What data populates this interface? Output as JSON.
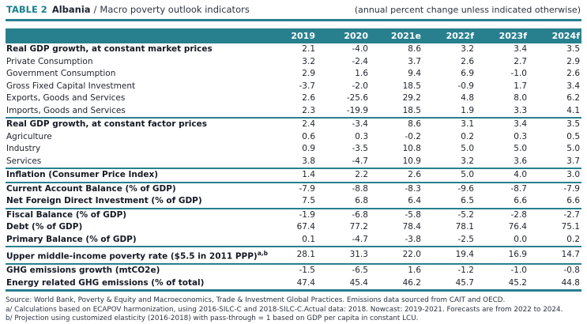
{
  "header": {
    "table_label": "TABLE 2",
    "country": "Albania",
    "separator": "/",
    "subtitle": "Macro poverty outlook indicators",
    "unit_note": "(annual percent change unless indicated otherwise)"
  },
  "colors": {
    "teal": "#28808F",
    "teal_text": "#1A7F8E"
  },
  "table": {
    "columns": [
      "2019",
      "2020",
      "2021e",
      "2022f",
      "2023f",
      "2024f"
    ],
    "rows": [
      {
        "label": "Real GDP growth, at constant market prices",
        "style": "group",
        "values": [
          "2.1",
          "-4.0",
          "8.6",
          "3.2",
          "3.4",
          "3.5"
        ],
        "divider_after": false
      },
      {
        "label": "Private Consumption",
        "style": "sub",
        "values": [
          "3.2",
          "-2.4",
          "3.7",
          "2.6",
          "2.7",
          "2.9"
        ],
        "divider_after": false
      },
      {
        "label": "Government Consumption",
        "style": "sub",
        "values": [
          "2.9",
          "1.6",
          "9.4",
          "6.9",
          "-1.0",
          "2.6"
        ],
        "divider_after": false
      },
      {
        "label": "Gross Fixed Capital Investment",
        "style": "sub",
        "values": [
          "-3.7",
          "-2.0",
          "18.5",
          "-0.9",
          "1.7",
          "3.4"
        ],
        "divider_after": false
      },
      {
        "label": "Exports, Goods and Services",
        "style": "sub",
        "values": [
          "2.6",
          "-25.6",
          "29.2",
          "4.8",
          "8.0",
          "6.2"
        ],
        "divider_after": false
      },
      {
        "label": "Imports, Goods and Services",
        "style": "sub",
        "values": [
          "2.3",
          "-19.9",
          "18.5",
          "1.9",
          "3.3",
          "4.1"
        ],
        "divider_after": true
      },
      {
        "label": "Real GDP growth, at constant factor prices",
        "style": "group",
        "values": [
          "2.4",
          "-3.4",
          "8.6",
          "3.1",
          "3.4",
          "3.5"
        ],
        "divider_after": false
      },
      {
        "label": "Agriculture",
        "style": "sub",
        "values": [
          "0.6",
          "0.3",
          "-0.2",
          "0.2",
          "0.3",
          "0.5"
        ],
        "divider_after": false
      },
      {
        "label": "Industry",
        "style": "sub",
        "values": [
          "0.9",
          "-3.5",
          "10.8",
          "5.0",
          "5.0",
          "5.0"
        ],
        "divider_after": false
      },
      {
        "label": "Services",
        "style": "sub",
        "values": [
          "3.8",
          "-4.7",
          "10.9",
          "3.2",
          "3.6",
          "3.7"
        ],
        "divider_after": true
      },
      {
        "label": "Inflation (Consumer Price Index)",
        "style": "group",
        "values": [
          "1.4",
          "2.2",
          "2.6",
          "5.0",
          "4.0",
          "3.0"
        ],
        "divider_after": true
      },
      {
        "label": "Current Account Balance (% of GDP)",
        "style": "group",
        "values": [
          "-7.9",
          "-8.8",
          "-8.3",
          "-9.6",
          "-8.7",
          "-7.9"
        ],
        "divider_after": false
      },
      {
        "label": "Net Foreign Direct Investment (% of GDP)",
        "style": "group",
        "values": [
          "7.5",
          "6.8",
          "6.4",
          "6.5",
          "6.6",
          "6.6"
        ],
        "divider_after": true
      },
      {
        "label": "Fiscal Balance (% of GDP)",
        "style": "group",
        "values": [
          "-1.9",
          "-6.8",
          "-5.8",
          "-5.2",
          "-2.8",
          "-2.7"
        ],
        "divider_after": false
      },
      {
        "label": "Debt (% of GDP)",
        "style": "group",
        "values": [
          "67.4",
          "77.2",
          "78.4",
          "78.1",
          "76.4",
          "75.1"
        ],
        "divider_after": false
      },
      {
        "label": "Primary Balance (% of GDP)",
        "style": "group",
        "values": [
          "0.1",
          "-4.7",
          "-3.8",
          "-2.5",
          "0.0",
          "0.2"
        ],
        "divider_after": true
      },
      {
        "label": "Upper middle-income poverty rate ($5.5 in 2011 PPP)",
        "sup": "a,b",
        "style": "group",
        "values": [
          "28.1",
          "31.3",
          "22.0",
          "19.4",
          "16.9",
          "14.7"
        ],
        "divider_after": true
      },
      {
        "label": "GHG emissions growth (mtCO2e)",
        "style": "group",
        "values": [
          "-1.5",
          "-6.5",
          "1.6",
          "-1.2",
          "-1.0",
          "-0.8"
        ],
        "divider_after": false
      },
      {
        "label": "Energy related GHG emissions (% of total)",
        "style": "group",
        "values": [
          "47.4",
          "45.4",
          "46.2",
          "45.7",
          "45.2",
          "44.8"
        ],
        "divider_after": false
      }
    ]
  },
  "footnotes": [
    "Source: World Bank, Poverty & Equity and Macroeconomics, Trade & Investment Global Practices. Emissions data sourced from CAIT and OECD.",
    "a/ Calculations based on ECAPOV harmonization, using 2016-SILC-C and 2018-SILC-C.Actual data: 2018. Nowcast: 2019-2021. Forecasts are from 2022 to 2024.",
    "b/ Projection using customized elasticity (2016-2018) with pass-through = 1 based on GDP per capita in constant LCU."
  ]
}
